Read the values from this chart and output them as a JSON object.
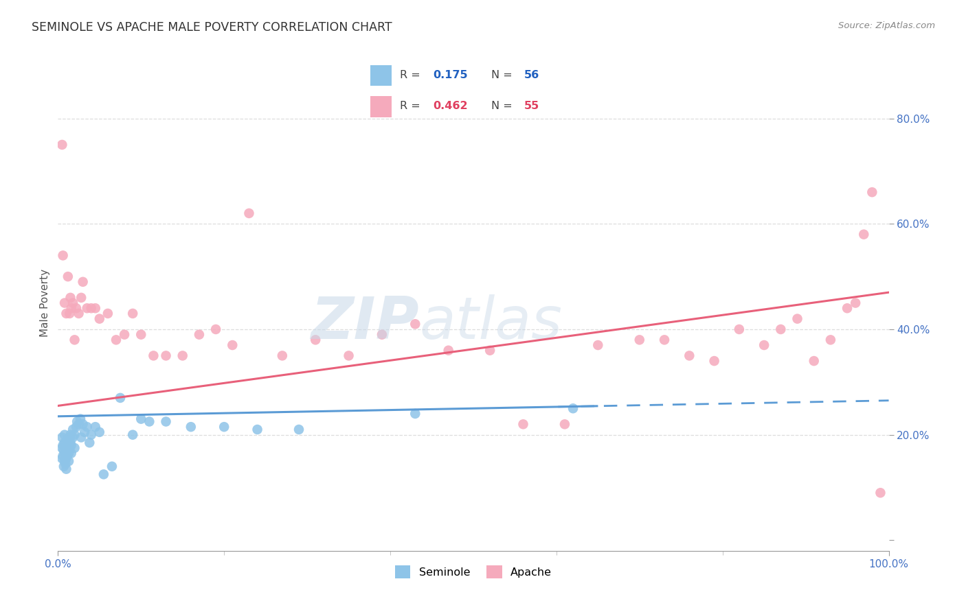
{
  "title": "SEMINOLE VS APACHE MALE POVERTY CORRELATION CHART",
  "source": "Source: ZipAtlas.com",
  "ylabel": "Male Poverty",
  "watermark_zip": "ZIP",
  "watermark_atlas": "atlas",
  "legend_blue_r": "0.175",
  "legend_blue_n": "56",
  "legend_pink_r": "0.462",
  "legend_pink_n": "55",
  "seminole_color": "#8ec4e8",
  "apache_color": "#f5aabc",
  "seminole_line_color": "#5b9bd5",
  "apache_line_color": "#e8607a",
  "background_color": "#ffffff",
  "grid_color": "#dddddd",
  "label_color": "#4472c4",
  "text_color": "#555555",
  "r_color_blue": "#2060c0",
  "r_color_pink": "#e04060",
  "seminole_x": [
    0.005,
    0.005,
    0.005,
    0.006,
    0.006,
    0.007,
    0.007,
    0.008,
    0.008,
    0.008,
    0.009,
    0.009,
    0.01,
    0.01,
    0.01,
    0.011,
    0.011,
    0.012,
    0.012,
    0.013,
    0.013,
    0.014,
    0.014,
    0.015,
    0.015,
    0.016,
    0.016,
    0.018,
    0.018,
    0.02,
    0.02,
    0.022,
    0.023,
    0.025,
    0.027,
    0.028,
    0.03,
    0.032,
    0.035,
    0.038,
    0.04,
    0.045,
    0.05,
    0.055,
    0.065,
    0.075,
    0.09,
    0.1,
    0.11,
    0.13,
    0.16,
    0.2,
    0.24,
    0.29,
    0.43,
    0.62
  ],
  "seminole_y": [
    0.155,
    0.175,
    0.195,
    0.16,
    0.18,
    0.14,
    0.17,
    0.15,
    0.185,
    0.2,
    0.145,
    0.165,
    0.135,
    0.155,
    0.175,
    0.16,
    0.19,
    0.17,
    0.185,
    0.15,
    0.165,
    0.175,
    0.195,
    0.185,
    0.2,
    0.165,
    0.18,
    0.21,
    0.195,
    0.2,
    0.175,
    0.215,
    0.225,
    0.22,
    0.23,
    0.195,
    0.22,
    0.205,
    0.215,
    0.185,
    0.2,
    0.215,
    0.205,
    0.125,
    0.14,
    0.27,
    0.2,
    0.23,
    0.225,
    0.225,
    0.215,
    0.215,
    0.21,
    0.21,
    0.24,
    0.25
  ],
  "apache_x": [
    0.005,
    0.006,
    0.008,
    0.01,
    0.012,
    0.014,
    0.015,
    0.016,
    0.018,
    0.02,
    0.022,
    0.025,
    0.028,
    0.03,
    0.035,
    0.04,
    0.045,
    0.05,
    0.06,
    0.07,
    0.08,
    0.09,
    0.1,
    0.115,
    0.13,
    0.15,
    0.17,
    0.19,
    0.21,
    0.23,
    0.27,
    0.31,
    0.35,
    0.39,
    0.43,
    0.47,
    0.52,
    0.56,
    0.61,
    0.65,
    0.7,
    0.73,
    0.76,
    0.79,
    0.82,
    0.85,
    0.87,
    0.89,
    0.91,
    0.93,
    0.95,
    0.96,
    0.97,
    0.98,
    0.99
  ],
  "apache_y": [
    0.75,
    0.54,
    0.45,
    0.43,
    0.5,
    0.43,
    0.46,
    0.44,
    0.45,
    0.38,
    0.44,
    0.43,
    0.46,
    0.49,
    0.44,
    0.44,
    0.44,
    0.42,
    0.43,
    0.38,
    0.39,
    0.43,
    0.39,
    0.35,
    0.35,
    0.35,
    0.39,
    0.4,
    0.37,
    0.62,
    0.35,
    0.38,
    0.35,
    0.39,
    0.41,
    0.36,
    0.36,
    0.22,
    0.22,
    0.37,
    0.38,
    0.38,
    0.35,
    0.34,
    0.4,
    0.37,
    0.4,
    0.42,
    0.34,
    0.38,
    0.44,
    0.45,
    0.58,
    0.66,
    0.09
  ],
  "seminole_line_start_x": 0.0,
  "seminole_line_end_x": 0.65,
  "seminole_line_dashed_end_x": 1.0,
  "apache_line_start_x": 0.0,
  "apache_line_end_x": 1.0,
  "xlim": [
    0.0,
    1.0
  ],
  "ylim": [
    -0.02,
    0.92
  ],
  "yticks": [
    0.0,
    0.2,
    0.4,
    0.6,
    0.8
  ],
  "ytick_labels": [
    "",
    "20.0%",
    "40.0%",
    "60.0%",
    "80.0%"
  ]
}
